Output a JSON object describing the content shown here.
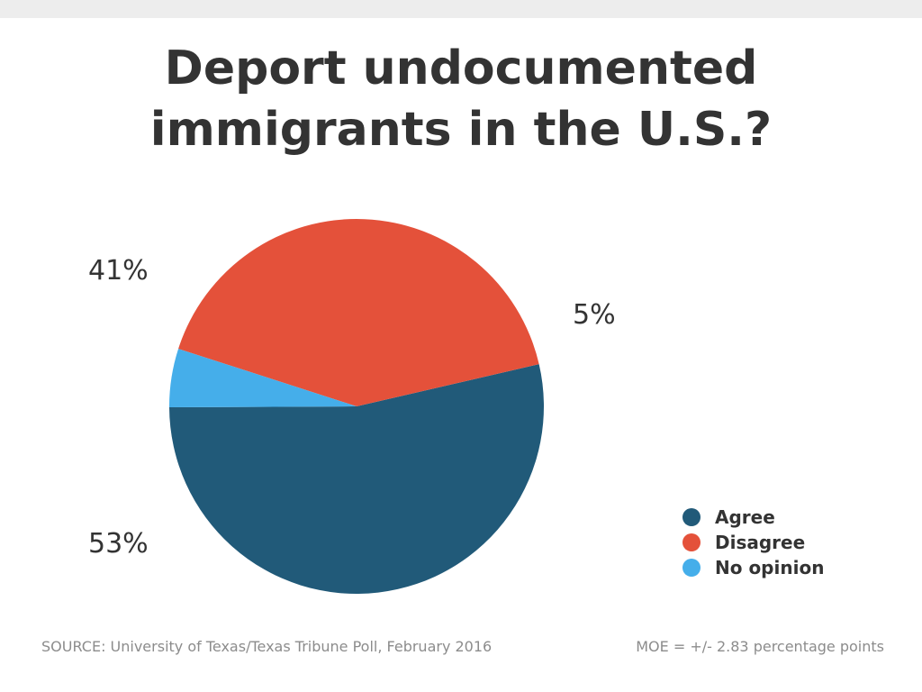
{
  "title_lines": [
    "Deport undocumented",
    "immigrants in the U.S.?"
  ],
  "chart_data": {
    "type": "pie",
    "title": "Deport undocumented immigrants in the U.S.?",
    "slices": [
      {
        "label": "Agree",
        "value": 53,
        "display": "53%",
        "color": "#215a79"
      },
      {
        "label": "Disagree",
        "value": 41,
        "display": "41%",
        "color": "#e4513a"
      },
      {
        "label": "No opinion",
        "value": 5,
        "display": "5%",
        "color": "#45aeea"
      }
    ],
    "legend_position": "bottom-right"
  },
  "footer": {
    "source": "SOURCE: University of Texas/Texas Tribune Poll, February 2016",
    "moe": "MOE = +/- 2.83 percentage points"
  }
}
